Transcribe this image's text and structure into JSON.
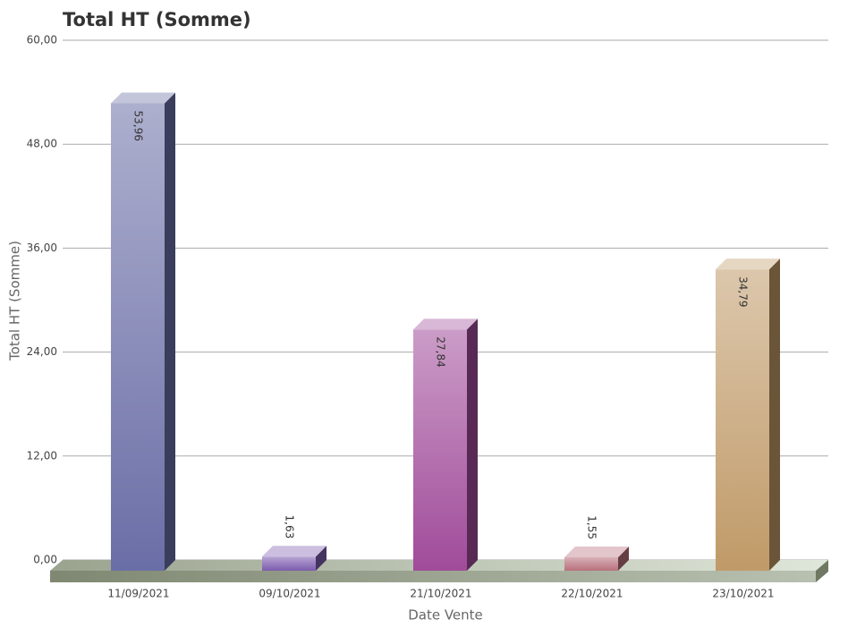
{
  "chart_data": {
    "type": "bar3d",
    "title": "Total HT (Somme)",
    "x_label": "Date Vente",
    "y_label": "Total HT (Somme)",
    "categories": [
      "11/09/2021",
      "09/10/2021",
      "21/10/2021",
      "22/10/2021",
      "23/10/2021"
    ],
    "values": [
      53.96,
      1.63,
      27.84,
      1.55,
      34.79
    ],
    "value_labels": [
      "53,96",
      "1,63",
      "27,84",
      "1,55",
      "34,79"
    ],
    "colors": [
      "#6a6ea6",
      "#7c5cae",
      "#a04b9a",
      "#b8707c",
      "#c09a68"
    ],
    "ylim": [
      0,
      60
    ],
    "yticks": [
      {
        "value": 0,
        "label": "0,00"
      },
      {
        "value": 12,
        "label": "12,00"
      },
      {
        "value": 24,
        "label": "24,00"
      },
      {
        "value": 36,
        "label": "36,00"
      },
      {
        "value": 48,
        "label": "48,00"
      },
      {
        "value": 60,
        "label": "60,00"
      }
    ],
    "grid": true
  }
}
